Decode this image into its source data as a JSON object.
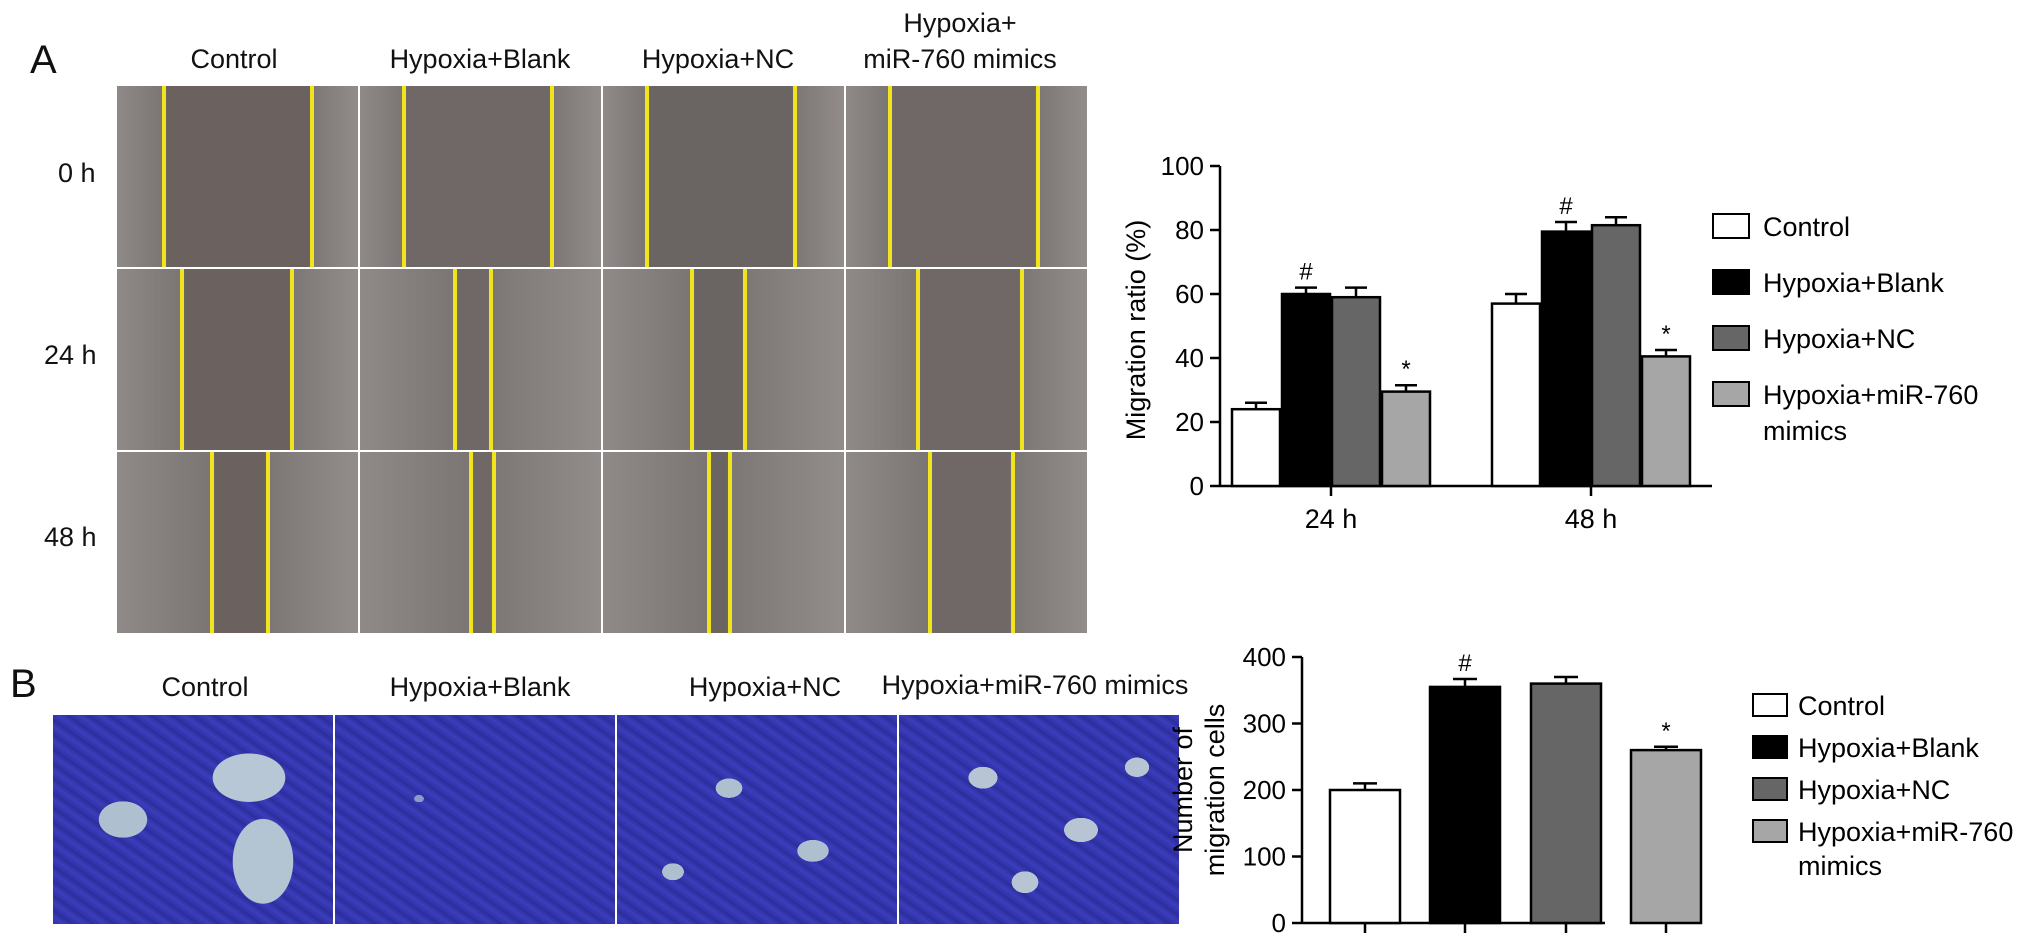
{
  "panelA": {
    "letter": "A",
    "columns": [
      "Control",
      "Hypoxia+Blank",
      "Hypoxia+NC",
      "Hypoxia+",
      "miR-760 mimics"
    ],
    "rows": [
      "0 h",
      "24 h",
      "48 h"
    ]
  },
  "panelB": {
    "letter": "B",
    "columns": [
      "Control",
      "Hypoxia+Blank",
      "Hypoxia+NC",
      "Hypoxia+miR-760 mimics"
    ]
  },
  "colors": {
    "control": "#ffffff",
    "hypoxia_blank": "#000000",
    "hypoxia_nc": "#666666",
    "hypoxia_mimics": "#a6a6a6",
    "scratch_line": "#f2e41c",
    "crystal_violet": "#3a3cb8"
  },
  "chart_data": [
    {
      "type": "bar",
      "categories": [
        "24 h",
        "48 h"
      ],
      "ylabel": "Migration ratio (%)",
      "ylim": [
        0,
        100
      ],
      "yticks": [
        "0",
        "20",
        "40",
        "60",
        "80",
        "100"
      ],
      "legend": [
        "Control",
        "Hypoxia+Blank",
        "Hypoxia+NC",
        "Hypoxia+miR-760",
        "mimics"
      ],
      "series": [
        {
          "name": "Control",
          "values": [
            24,
            57
          ],
          "errors": [
            2,
            3
          ]
        },
        {
          "name": "Hypoxia+Blank",
          "values": [
            60,
            79.5
          ],
          "errors": [
            2,
            3
          ]
        },
        {
          "name": "Hypoxia+NC",
          "values": [
            59,
            81.5
          ],
          "errors": [
            3,
            2.5
          ]
        },
        {
          "name": "Hypoxia+miR-760 mimics",
          "values": [
            29.5,
            40.5
          ],
          "errors": [
            2,
            2
          ]
        }
      ],
      "annotations": [
        "#",
        "*",
        "#",
        "*"
      ]
    },
    {
      "type": "bar",
      "categories": [
        "Control",
        "Hypoxia+Blank",
        "Hypoxia+NC",
        "Hypoxia+miR-760 mimics"
      ],
      "values": [
        200,
        355,
        360,
        260
      ],
      "errors": [
        10,
        12,
        10,
        5
      ],
      "ylabel_line1": "Number of",
      "ylabel_line2": "migration cells",
      "ylim": [
        0,
        400
      ],
      "yticks": [
        "0",
        "100",
        "200",
        "300",
        "400"
      ],
      "legend": [
        "Control",
        "Hypoxia+Blank",
        "Hypoxia+NC",
        "Hypoxia+miR-760",
        "mimics"
      ],
      "annotations": [
        "#",
        "*"
      ]
    }
  ]
}
